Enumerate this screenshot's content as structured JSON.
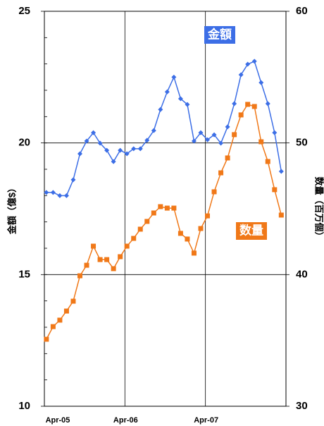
{
  "chart_data": {
    "type": "line",
    "categories": [
      "Apr-05",
      null,
      null,
      null,
      null,
      null,
      null,
      null,
      null,
      null,
      null,
      null,
      "Apr-06",
      null,
      null,
      null,
      null,
      null,
      null,
      null,
      null,
      null,
      null,
      null,
      "Apr-07",
      null,
      null,
      null,
      null,
      null,
      null,
      null,
      null,
      null,
      null,
      null
    ],
    "series": [
      {
        "name": "金額",
        "color": "#3c6ee6",
        "marker": "diamond",
        "axis": "y",
        "values": [
          18.12,
          18.12,
          18.0,
          18.0,
          18.6,
          19.59,
          20.07,
          20.39,
          19.99,
          19.72,
          19.29,
          19.72,
          19.59,
          19.78,
          19.78,
          20.1,
          20.47,
          21.27,
          21.94,
          22.5,
          21.68,
          21.46,
          20.07,
          20.39,
          20.12,
          20.31,
          19.99,
          20.61,
          21.49,
          22.59,
          22.99,
          23.1,
          22.29,
          21.49,
          20.39,
          18.92
        ]
      },
      {
        "name": "数量",
        "color": "#f07818",
        "marker": "square",
        "axis": "y2",
        "values": [
          35.09,
          36.05,
          36.54,
          37.23,
          37.98,
          39.91,
          40.71,
          42.16,
          41.14,
          41.14,
          40.45,
          41.36,
          42.16,
          42.75,
          43.45,
          44.04,
          44.68,
          45.16,
          45.05,
          45.05,
          43.13,
          42.7,
          41.63,
          43.5,
          44.46,
          46.29,
          47.73,
          48.86,
          50.63,
          52.13,
          52.93,
          52.77,
          50.09,
          48.59,
          46.45,
          44.52
        ]
      }
    ],
    "ylabel": "金額（億$）",
    "y2label": "数量（百万個）",
    "ylim": [
      10,
      25
    ],
    "yticks": [
      10,
      15,
      20,
      25
    ],
    "y2lim": [
      30,
      60
    ],
    "y2ticks": [
      30,
      40,
      50,
      60
    ],
    "grid": true
  }
}
